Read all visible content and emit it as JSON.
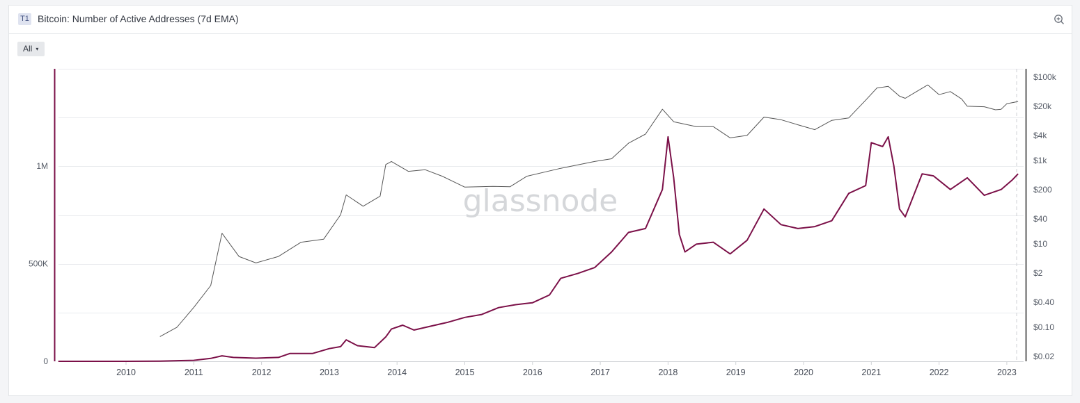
{
  "badge": "T1",
  "title": "Bitcoin: Number of Active Addresses (7d EMA)",
  "range_button": {
    "label": "All",
    "caret": "▾"
  },
  "icons": {
    "zoom": "zoom-in-icon"
  },
  "watermark": "glassnode",
  "colors": {
    "active_addresses": "#7b1048",
    "price": "#555555",
    "grid": "#e9ebee",
    "background": "#ffffff"
  },
  "chart_data": {
    "type": "line",
    "x_ticks": [
      "2010",
      "2011",
      "2012",
      "2013",
      "2014",
      "2015",
      "2016",
      "2017",
      "2018",
      "2019",
      "2020",
      "2021",
      "2022",
      "2023"
    ],
    "y_left_ticks": [
      "0",
      "500K",
      "1M"
    ],
    "y_right_ticks": [
      "$0.02",
      "$0.10",
      "$0.40",
      "$2",
      "$10",
      "$40",
      "$200",
      "$1k",
      "$4k",
      "$20k",
      "$100k"
    ],
    "y_left_scale": "linear",
    "y_right_scale": "log",
    "grid": true,
    "series": [
      {
        "axis": "left",
        "color": "#7b1048",
        "points": [
          [
            "2009-01",
            0
          ],
          [
            "2010-01",
            0
          ],
          [
            "2010-07",
            1000
          ],
          [
            "2011-01",
            5000
          ],
          [
            "2011-04",
            15000
          ],
          [
            "2011-06",
            28000
          ],
          [
            "2011-08",
            20000
          ],
          [
            "2011-12",
            16000
          ],
          [
            "2012-04",
            20000
          ],
          [
            "2012-06",
            40000
          ],
          [
            "2012-10",
            40000
          ],
          [
            "2013-01",
            65000
          ],
          [
            "2013-03",
            75000
          ],
          [
            "2013-04",
            110000
          ],
          [
            "2013-06",
            80000
          ],
          [
            "2013-09",
            70000
          ],
          [
            "2013-11",
            125000
          ],
          [
            "2013-12",
            165000
          ],
          [
            "2014-02",
            185000
          ],
          [
            "2014-04",
            160000
          ],
          [
            "2014-07",
            180000
          ],
          [
            "2014-10",
            200000
          ],
          [
            "2015-01",
            225000
          ],
          [
            "2015-04",
            240000
          ],
          [
            "2015-07",
            275000
          ],
          [
            "2015-10",
            290000
          ],
          [
            "2016-01",
            300000
          ],
          [
            "2016-04",
            340000
          ],
          [
            "2016-06",
            425000
          ],
          [
            "2016-09",
            450000
          ],
          [
            "2016-12",
            480000
          ],
          [
            "2017-03",
            560000
          ],
          [
            "2017-06",
            660000
          ],
          [
            "2017-09",
            680000
          ],
          [
            "2017-12",
            880000
          ],
          [
            "2018-01",
            1150000
          ],
          [
            "2018-02",
            940000
          ],
          [
            "2018-03",
            650000
          ],
          [
            "2018-04",
            560000
          ],
          [
            "2018-06",
            600000
          ],
          [
            "2018-09",
            610000
          ],
          [
            "2018-12",
            550000
          ],
          [
            "2019-03",
            620000
          ],
          [
            "2019-06",
            780000
          ],
          [
            "2019-09",
            700000
          ],
          [
            "2019-12",
            680000
          ],
          [
            "2020-03",
            690000
          ],
          [
            "2020-06",
            720000
          ],
          [
            "2020-09",
            860000
          ],
          [
            "2020-12",
            900000
          ],
          [
            "2021-01",
            1120000
          ],
          [
            "2021-03",
            1100000
          ],
          [
            "2021-04",
            1150000
          ],
          [
            "2021-05",
            1000000
          ],
          [
            "2021-06",
            780000
          ],
          [
            "2021-07",
            740000
          ],
          [
            "2021-10",
            960000
          ],
          [
            "2021-12",
            950000
          ],
          [
            "2022-03",
            880000
          ],
          [
            "2022-06",
            940000
          ],
          [
            "2022-09",
            850000
          ],
          [
            "2022-12",
            880000
          ],
          [
            "2023-02",
            930000
          ],
          [
            "2023-03",
            960000
          ]
        ]
      },
      {
        "axis": "right",
        "color": "#555555",
        "points": [
          [
            "2010-07",
            0.06
          ],
          [
            "2010-10",
            0.1
          ],
          [
            "2011-01",
            0.3
          ],
          [
            "2011-04",
            1
          ],
          [
            "2011-06",
            18
          ],
          [
            "2011-09",
            5
          ],
          [
            "2011-12",
            3.5
          ],
          [
            "2012-04",
            5
          ],
          [
            "2012-08",
            11
          ],
          [
            "2012-12",
            13
          ],
          [
            "2013-03",
            50
          ],
          [
            "2013-04",
            150
          ],
          [
            "2013-07",
            80
          ],
          [
            "2013-10",
            140
          ],
          [
            "2013-11",
            800
          ],
          [
            "2013-12",
            950
          ],
          [
            "2014-03",
            550
          ],
          [
            "2014-06",
            600
          ],
          [
            "2014-09",
            420
          ],
          [
            "2015-01",
            230
          ],
          [
            "2015-06",
            240
          ],
          [
            "2015-09",
            235
          ],
          [
            "2015-12",
            420
          ],
          [
            "2016-06",
            650
          ],
          [
            "2016-12",
            950
          ],
          [
            "2017-03",
            1100
          ],
          [
            "2017-06",
            2600
          ],
          [
            "2017-09",
            4300
          ],
          [
            "2017-12",
            17000
          ],
          [
            "2018-02",
            8500
          ],
          [
            "2018-06",
            6500
          ],
          [
            "2018-09",
            6500
          ],
          [
            "2018-12",
            3500
          ],
          [
            "2019-03",
            4000
          ],
          [
            "2019-06",
            11000
          ],
          [
            "2019-09",
            9500
          ],
          [
            "2019-12",
            7200
          ],
          [
            "2020-03",
            5500
          ],
          [
            "2020-06",
            9200
          ],
          [
            "2020-09",
            10500
          ],
          [
            "2020-12",
            28000
          ],
          [
            "2021-02",
            55000
          ],
          [
            "2021-04",
            60000
          ],
          [
            "2021-06",
            35000
          ],
          [
            "2021-07",
            31000
          ],
          [
            "2021-09",
            45000
          ],
          [
            "2021-11",
            65000
          ],
          [
            "2022-01",
            38000
          ],
          [
            "2022-03",
            45000
          ],
          [
            "2022-05",
            30000
          ],
          [
            "2022-06",
            20000
          ],
          [
            "2022-09",
            19500
          ],
          [
            "2022-11",
            16500
          ],
          [
            "2022-12",
            17000
          ],
          [
            "2023-01",
            23000
          ],
          [
            "2023-03",
            26000
          ]
        ]
      }
    ]
  }
}
